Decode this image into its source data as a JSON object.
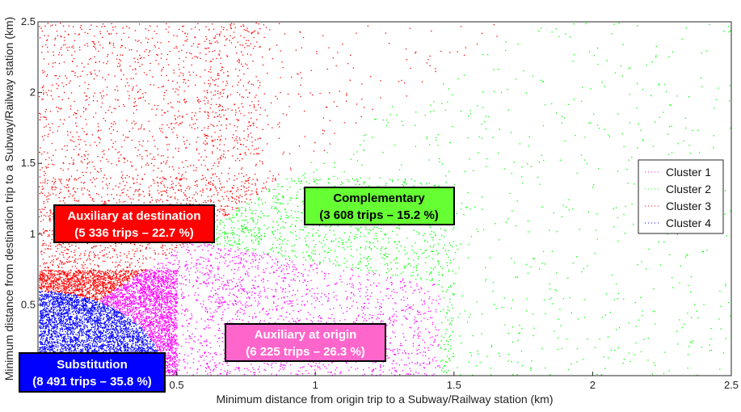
{
  "chart_data": {
    "type": "scatter",
    "title": "",
    "xlabel": "Minimum distance from origin trip to a Subway/Railway station (km)",
    "ylabel": "Minimum distance from destination trip to a Subway/Railway station (km)",
    "xlim": [
      0,
      2.5
    ],
    "ylim": [
      0,
      2.5
    ],
    "xticks": [
      0.5,
      1,
      1.5,
      2,
      2.5
    ],
    "xtick_labels": [
      "0.5",
      "1",
      "1.5",
      "2",
      "2.5"
    ],
    "yticks": [
      0.5,
      1,
      1.5,
      2,
      2.5
    ],
    "ytick_labels": [
      "0.5",
      "1",
      "1.5",
      "2",
      "2.5"
    ],
    "grid": false,
    "legend_position": "right",
    "series": [
      {
        "name": "Cluster 1",
        "color": "#ff00ff",
        "trips": 6225,
        "share_pct": 26.3
      },
      {
        "name": "Cluster 2",
        "color": "#00ff00",
        "trips": 3608,
        "share_pct": 15.2
      },
      {
        "name": "Cluster 3",
        "color": "#ff0000",
        "trips": 5336,
        "share_pct": 22.7
      },
      {
        "name": "Cluster 4",
        "color": "#0000ff",
        "trips": 8491,
        "share_pct": 35.8
      }
    ],
    "annotations": [
      {
        "series": "Cluster 2",
        "title": "Complementary",
        "subtitle": "(3 608 trips – 15.2 %)",
        "bg": "#66ff33",
        "fg": "#000000"
      },
      {
        "series": "Cluster 3",
        "title": "Auxiliary at destination",
        "subtitle": "(5 336 trips – 22.7 %)",
        "bg": "#ff0000",
        "fg": "#ffffff"
      },
      {
        "series": "Cluster 1",
        "title": "Auxiliary at origin",
        "subtitle": "(6 225 trips – 26.3 %)",
        "bg": "#ff66cc",
        "fg": "#ffffff"
      },
      {
        "series": "Cluster 4",
        "title": "Substitution",
        "subtitle": "(8 491 trips – 35.8 %)",
        "bg": "#0000ff",
        "fg": "#ffffff"
      }
    ]
  }
}
